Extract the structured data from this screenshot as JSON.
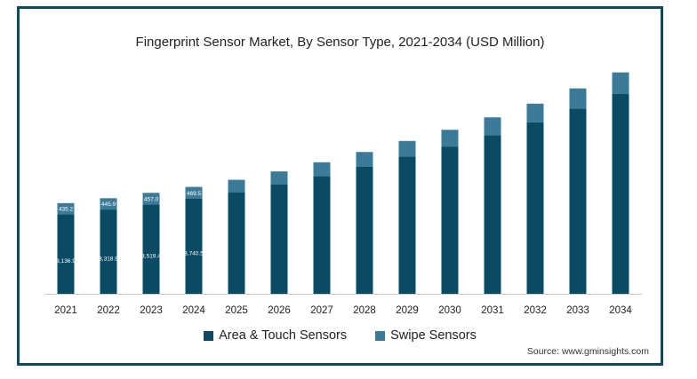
{
  "colors": {
    "frame": "#0e4a5e",
    "area_touch": "#0b4a63",
    "swipe": "#3c7b98",
    "axis": "#c8c8c8"
  },
  "chart_data": {
    "type": "bar",
    "stacked": true,
    "title": "Fingerprint Sensor Market, By Sensor Type, 2021-2034 (USD Million)",
    "categories": [
      "2021",
      "2022",
      "2023",
      "2024",
      "2025",
      "2026",
      "2027",
      "2028",
      "2029",
      "2030",
      "2031",
      "2032",
      "2033",
      "2034"
    ],
    "series": [
      {
        "name": "Area & Touch Sensors",
        "values": [
          3136.9,
          3318.9,
          3519.4,
          3740.5,
          4000,
          4300,
          4630,
          5000,
          5400,
          5800,
          6250,
          6750,
          7300,
          7880
        ],
        "labels": [
          "3,136.9",
          "3,318.9",
          "3,519.4",
          "3,740.5",
          "",
          "",
          "",
          "",
          "",
          "",
          "",
          "",
          "",
          ""
        ]
      },
      {
        "name": "Swipe Sensors",
        "values": [
          435.2,
          445.9,
          457.0,
          469.5,
          490,
          520,
          550,
          585,
          620,
          660,
          700,
          740,
          790,
          840
        ],
        "labels": [
          "435.2",
          "445.9",
          "457.0",
          "469.5",
          "",
          "",
          "",
          "",
          "",
          "",
          "",
          "",
          "",
          ""
        ]
      }
    ],
    "ylim": [
      0,
      9300
    ],
    "grid": false,
    "legend_position": "bottom"
  },
  "source": "Source: www.gminsights.com"
}
